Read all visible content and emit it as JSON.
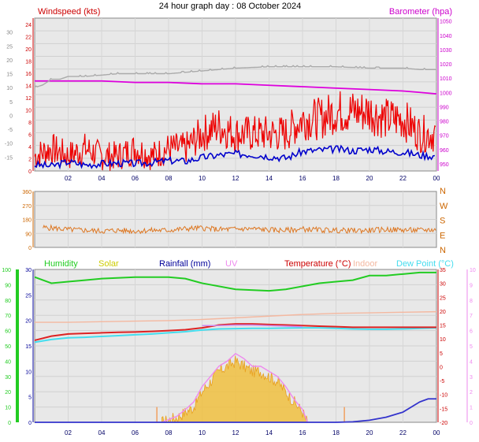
{
  "title": "24 hour graph day : 08 October 2024",
  "colors": {
    "wind": "#ee0000",
    "wind_avg": "#0000cc",
    "barometer": "#dd00dd",
    "temp_axis": "#aaaaaa",
    "direction": "#dd7722",
    "humidity": "#22cc22",
    "solar": "#f0c040",
    "rainfall": "#3333cc",
    "uv": "#ee88ee",
    "temperature": "#dd2222",
    "indoor": "#f4b8a0",
    "dewpoint": "#44ddee",
    "plot_bg": "#e8e8e8"
  },
  "chart_data": [
    {
      "type": "line",
      "panel": "wind_barometer",
      "left_label": "Windspeed (kts)",
      "right_label": "Barometer (hpa)",
      "left_ticks": [
        "24",
        "22",
        "20",
        "18",
        "16",
        "14",
        "12",
        "10",
        "8",
        "6",
        "4",
        "2",
        "0"
      ],
      "temp_ticks": [
        "30",
        "25",
        "20",
        "15",
        "10",
        "5",
        "0",
        "-5",
        "-10",
        "-15"
      ],
      "right_ticks": [
        "1050",
        "1040",
        "1030",
        "1020",
        "1010",
        "1000",
        "990",
        "980",
        "970",
        "960",
        "950"
      ],
      "x_ticks": [
        "02",
        "04",
        "06",
        "08",
        "10",
        "12",
        "14",
        "16",
        "18",
        "20",
        "22",
        "00"
      ],
      "x_range": [
        0,
        24
      ],
      "wind_ylim": [
        0,
        25
      ],
      "baro_ylim": [
        945,
        1052
      ],
      "series": [
        {
          "key": "gust",
          "x": [
            0,
            1,
            2,
            3,
            4,
            5,
            6,
            7,
            8,
            9,
            10,
            11,
            12,
            13,
            14,
            15,
            16,
            17,
            18,
            19,
            20,
            21,
            22,
            23,
            24
          ],
          "values": [
            3,
            4,
            3,
            4,
            3,
            3,
            4,
            3,
            4,
            4,
            6,
            7,
            6,
            6,
            6,
            6,
            8,
            8,
            9,
            9,
            9,
            8,
            8,
            6,
            6
          ]
        },
        {
          "key": "avg",
          "x": [
            0,
            1,
            2,
            3,
            4,
            5,
            6,
            7,
            8,
            9,
            10,
            11,
            12,
            13,
            14,
            15,
            16,
            17,
            18,
            19,
            20,
            21,
            22,
            23,
            24
          ],
          "values": [
            1,
            0.8,
            1.5,
            1,
            1.2,
            1.3,
            1.2,
            1.4,
            1.7,
            1.6,
            2.2,
            2.6,
            2.8,
            2.7,
            2.4,
            2.1,
            3.2,
            3.4,
            3.6,
            3.3,
            3.6,
            3.2,
            3.1,
            2.6,
            2.4
          ]
        },
        {
          "key": "barometer",
          "x": [
            0,
            1,
            2,
            4,
            6,
            8,
            10,
            12,
            14,
            16,
            18,
            20,
            22,
            23,
            24
          ],
          "values": [
            1008,
            1008,
            1008,
            1008,
            1007,
            1007,
            1006,
            1006,
            1005,
            1004,
            1003,
            1002,
            1001,
            1000,
            999
          ]
        },
        {
          "key": "temp_grey",
          "x": [
            0,
            0.5,
            1,
            1.5,
            2,
            3,
            4,
            5,
            6,
            8,
            10,
            12,
            14,
            16,
            18,
            20,
            22,
            23,
            24
          ],
          "values": [
            10,
            11,
            13,
            13,
            14,
            14,
            14.5,
            15,
            15,
            15,
            16,
            17,
            17.5,
            17.5,
            17.5,
            17,
            17,
            16.5,
            16.5
          ]
        }
      ]
    },
    {
      "type": "line",
      "panel": "direction",
      "left_ticks": [
        "360",
        "270",
        "180",
        "90",
        "0"
      ],
      "right_ticks": [
        "N",
        "W",
        "S",
        "E",
        "N"
      ],
      "ylim": [
        0,
        360
      ],
      "series": [
        {
          "key": "direction",
          "x": [
            0,
            1,
            2,
            3,
            4,
            5,
            6,
            7,
            8,
            9,
            10,
            11,
            12,
            13,
            14,
            15,
            16,
            17,
            18,
            19,
            20,
            21,
            22,
            23,
            24
          ],
          "values": [
            130,
            125,
            115,
            110,
            105,
            110,
            105,
            110,
            110,
            120,
            125,
            115,
            118,
            120,
            112,
            110,
            118,
            112,
            110,
            108,
            110,
            115,
            112,
            110,
            115
          ]
        }
      ]
    },
    {
      "type": "line",
      "panel": "multi",
      "legend": [
        "Humidity",
        "Solar",
        "Rainfall (mm)",
        "UV",
        "Temperature (°C)",
        "Indoor",
        "Dew Point (°C)"
      ],
      "hum_ticks": [
        "100",
        "90",
        "80",
        "70",
        "60",
        "50",
        "40",
        "30",
        "20",
        "10",
        "0"
      ],
      "rain_ticks": [
        "30",
        "25",
        "20",
        "15",
        "10",
        "5",
        "0"
      ],
      "temp_ticks": [
        "35",
        "30",
        "25",
        "20",
        "15",
        "10",
        "5",
        "0",
        "-5",
        "-10",
        "-15",
        "-20"
      ],
      "uv_ticks": [
        "10",
        "9",
        "8",
        "7",
        "6",
        "5",
        "4",
        "3",
        "2",
        "1",
        "0"
      ],
      "hum_ylim": [
        0,
        100
      ],
      "rain_ylim": [
        0,
        30
      ],
      "temp_ylim": [
        -20,
        35
      ],
      "series": [
        {
          "key": "humidity",
          "x": [
            0,
            1,
            2,
            3,
            4,
            6,
            8,
            9,
            10,
            12,
            14,
            15,
            16,
            17,
            18,
            19,
            20,
            21,
            22,
            23,
            24
          ],
          "values": [
            95,
            91,
            92,
            93,
            94,
            95,
            95,
            94,
            91,
            87,
            86,
            87,
            89,
            91,
            92,
            93,
            96,
            96,
            97,
            98,
            98
          ]
        },
        {
          "key": "indoor",
          "x": [
            0,
            2,
            4,
            6,
            8,
            10,
            12,
            14,
            16,
            18,
            20,
            22,
            24
          ],
          "values": [
            16,
            16,
            16.2,
            16.4,
            16.6,
            17,
            17.6,
            18.2,
            18.8,
            19.2,
            19.4,
            19.6,
            19.8
          ]
        },
        {
          "key": "temperature",
          "x": [
            0,
            1,
            2,
            3,
            4,
            5,
            6,
            7,
            8,
            9,
            10,
            11,
            12,
            13,
            14,
            15,
            16,
            17,
            18,
            19,
            20,
            21,
            22,
            23,
            24
          ],
          "values": [
            9.5,
            11,
            11.8,
            12,
            12.2,
            12.4,
            12.5,
            12.7,
            13,
            13.3,
            14,
            15,
            15.4,
            15.4,
            15.2,
            15,
            14.8,
            14.6,
            14.4,
            14.2,
            14.2,
            14.2,
            14.2,
            14.2,
            14.2
          ]
        },
        {
          "key": "uv_temp",
          "x": [
            10,
            11,
            12,
            13,
            14,
            15,
            16
          ],
          "values": [
            14.8,
            14.8,
            15,
            15,
            14.8,
            14.6,
            14.4
          ]
        },
        {
          "key": "dewpoint",
          "x": [
            0,
            1,
            2,
            3,
            4,
            5,
            6,
            7,
            8,
            9,
            10,
            11,
            12,
            13,
            14,
            15,
            16,
            17,
            18,
            19,
            20,
            21,
            22,
            23,
            24
          ],
          "values": [
            8.8,
            9.8,
            10.4,
            10.6,
            10.9,
            11.2,
            11.5,
            11.8,
            12.2,
            12.6,
            13.2,
            13.6,
            13.7,
            13.8,
            13.8,
            13.9,
            14.0,
            14.0,
            13.8,
            13.6,
            13.5,
            13.5,
            13.6,
            13.8,
            14.0
          ]
        },
        {
          "key": "rainfall",
          "x": [
            0,
            18,
            19,
            20,
            21,
            22,
            23,
            23.5,
            24
          ],
          "values": [
            0,
            0,
            0.1,
            0.4,
            1,
            2,
            4,
            4.6,
            4.6
          ]
        },
        {
          "key": "solar",
          "x": [
            7.6,
            8.5,
            9,
            9.5,
            10,
            10.5,
            11,
            11.5,
            12,
            12.5,
            13,
            13.5,
            14,
            14.5,
            15,
            15.5,
            16,
            16.3
          ],
          "values": [
            0,
            1,
            2,
            3,
            6,
            8,
            10,
            11,
            12,
            11,
            10,
            10,
            9,
            8,
            6,
            4,
            2,
            0
          ]
        },
        {
          "key": "uv",
          "x": [
            7.6,
            8.5,
            9,
            9.5,
            10,
            10.5,
            11,
            11.5,
            12,
            12.5,
            13,
            13.5,
            14,
            14.5,
            15,
            15.5,
            16,
            16.3
          ],
          "values": [
            0,
            1.2,
            2.5,
            4,
            7,
            9,
            11,
            12,
            13.5,
            12.5,
            11,
            11,
            10,
            9,
            7,
            4.5,
            2.5,
            0
          ]
        },
        {
          "key": "solar_marks",
          "x": [
            7.3,
            18.5
          ],
          "values": [
            3,
            3
          ]
        }
      ]
    }
  ]
}
